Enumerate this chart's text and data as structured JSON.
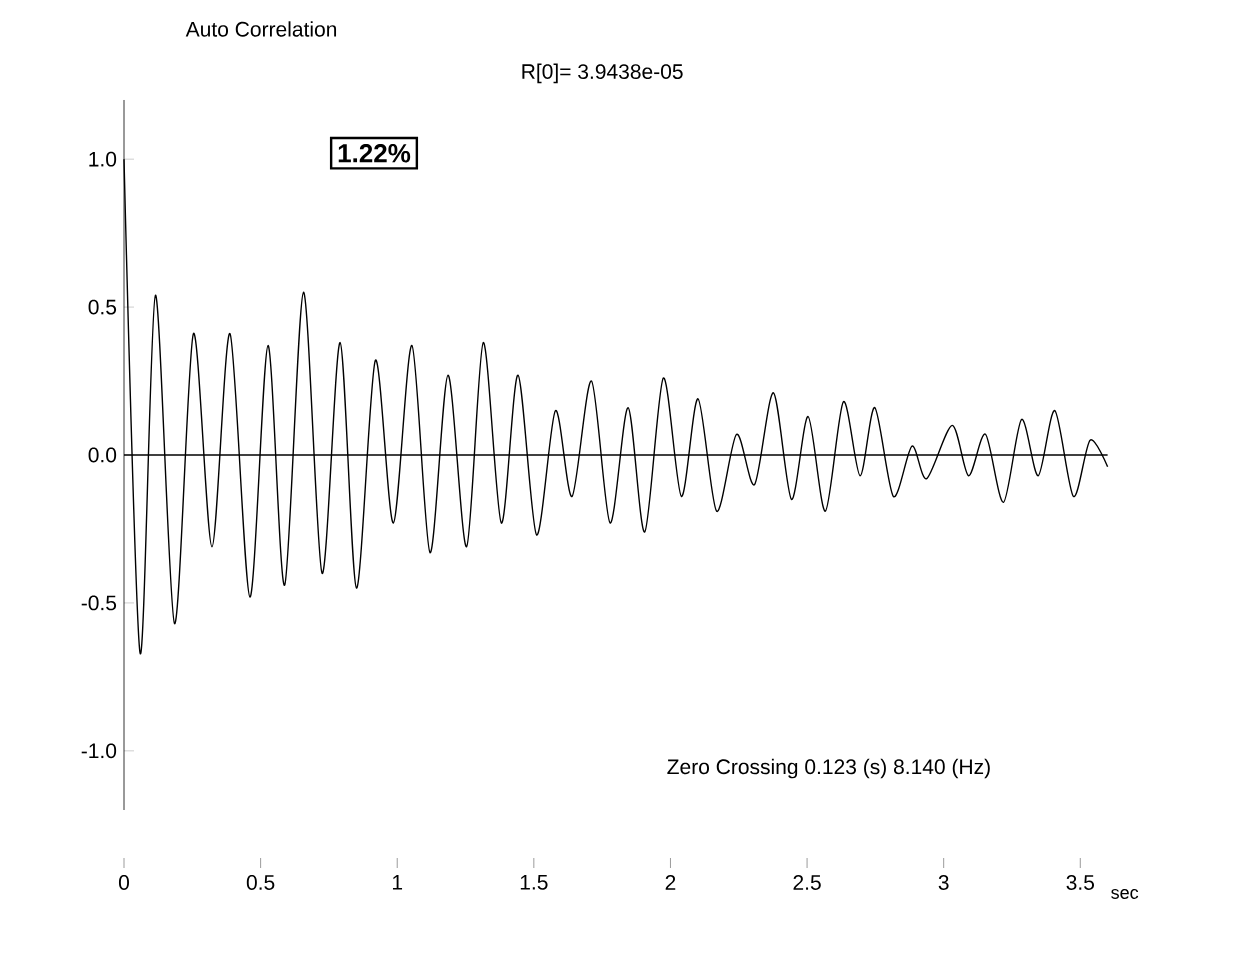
{
  "chart_data": {
    "type": "line",
    "title": "Auto Correlation",
    "xlabel": "sec",
    "annotations": [
      "1.22%",
      "R[0]=  3.9438e-05",
      "Zero Crossing  0.123 (s)   8.140 (Hz)"
    ],
    "xlim": [
      0,
      3.6
    ],
    "ylim": [
      -1.2,
      1.2
    ],
    "xticks": [
      0,
      0.5,
      1,
      1.5,
      2,
      2.5,
      3,
      3.5
    ],
    "yticks": [
      {
        "value": -1,
        "label": "-1.0"
      },
      {
        "value": -0.5,
        "label": "-0.5"
      },
      {
        "value": 0,
        "label": "0.0"
      },
      {
        "value": 0.5,
        "label": "0.5"
      },
      {
        "value": 1,
        "label": "1.0"
      }
    ],
    "ref_lines": [
      {
        "axis": "y",
        "value": 0,
        "color": "#000000"
      }
    ],
    "grid": false,
    "marker": "none",
    "line_style": "solid",
    "series": [
      {
        "color": "#000000",
        "x": [
          0,
          0.059,
          0.115,
          0.185,
          0.254,
          0.322,
          0.388,
          0.461,
          0.527,
          0.588,
          0.657,
          0.725,
          0.791,
          0.851,
          0.92,
          0.986,
          1.054,
          1.12,
          1.186,
          1.254,
          1.315,
          1.381,
          1.442,
          1.51,
          1.579,
          1.64,
          1.711,
          1.779,
          1.845,
          1.906,
          1.974,
          2.04,
          2.101,
          2.169,
          2.242,
          2.308,
          2.377,
          2.443,
          2.504,
          2.567,
          2.633,
          2.694,
          2.748,
          2.816,
          2.884,
          2.938,
          3.031,
          3.091,
          3.153,
          3.219,
          3.285,
          3.346,
          3.407,
          3.475,
          3.536,
          3.6
        ],
        "values": [
          1.0,
          -0.67,
          0.54,
          -0.57,
          0.41,
          -0.31,
          0.41,
          -0.48,
          0.37,
          -0.44,
          0.55,
          -0.4,
          0.38,
          -0.45,
          0.32,
          -0.23,
          0.37,
          -0.33,
          0.27,
          -0.31,
          0.38,
          -0.23,
          0.27,
          -0.27,
          0.15,
          -0.14,
          0.25,
          -0.23,
          0.16,
          -0.26,
          0.26,
          -0.14,
          0.19,
          -0.19,
          0.07,
          -0.1,
          0.21,
          -0.15,
          0.13,
          -0.19,
          0.18,
          -0.07,
          0.16,
          -0.14,
          0.03,
          -0.08,
          0.1,
          -0.07,
          0.07,
          -0.16,
          0.12,
          -0.07,
          0.15,
          -0.14,
          0.05,
          -0.04
        ]
      }
    ]
  }
}
